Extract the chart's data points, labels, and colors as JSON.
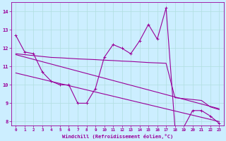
{
  "xlabel": "Windchill (Refroidissement éolien,°C)",
  "bg_color": "#cceeff",
  "line_color": "#990099",
  "grid_color": "#b0dede",
  "xlim": [
    -0.5,
    23.5
  ],
  "ylim": [
    7.8,
    14.5
  ],
  "xticks": [
    0,
    1,
    2,
    3,
    4,
    5,
    6,
    7,
    8,
    9,
    10,
    11,
    12,
    13,
    14,
    15,
    16,
    17,
    18,
    19,
    20,
    21,
    22,
    23
  ],
  "yticks": [
    8,
    9,
    10,
    11,
    12,
    13,
    14
  ],
  "line1_x": [
    0,
    1,
    2,
    3,
    4,
    5,
    6,
    7,
    8,
    9,
    10,
    11,
    12,
    13,
    14,
    15,
    16,
    17,
    18,
    19,
    20,
    21,
    22,
    23
  ],
  "line1_y": [
    12.7,
    11.8,
    11.7,
    10.7,
    10.2,
    10.0,
    10.0,
    9.0,
    9.0,
    9.8,
    11.5,
    12.2,
    12.0,
    11.7,
    12.4,
    13.3,
    12.5,
    14.2,
    7.7,
    7.7,
    8.6,
    8.6,
    8.3,
    7.9
  ],
  "line2_x": [
    0,
    1,
    2,
    3,
    4,
    5,
    6,
    7,
    8,
    9,
    10,
    11,
    12,
    13,
    14,
    15,
    16,
    17,
    18,
    19,
    20,
    21,
    22,
    23
  ],
  "line2_y": [
    11.7,
    11.65,
    11.6,
    11.55,
    11.5,
    11.48,
    11.45,
    11.42,
    11.4,
    11.38,
    11.35,
    11.33,
    11.3,
    11.28,
    11.25,
    11.22,
    11.2,
    11.18,
    9.3,
    9.25,
    9.2,
    9.15,
    8.8,
    8.65
  ],
  "line3_x": [
    0,
    23
  ],
  "line3_y": [
    11.65,
    8.7
  ],
  "line4_x": [
    0,
    23
  ],
  "line4_y": [
    10.65,
    8.0
  ]
}
